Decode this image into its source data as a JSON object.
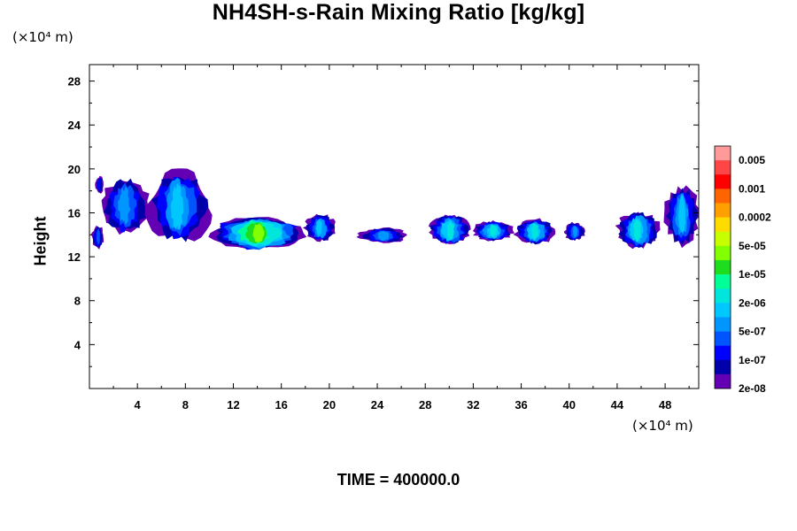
{
  "title": "NH4SH-s-Rain Mixing Ratio [kg/kg]",
  "y_unit": "(×10⁴ m)",
  "x_unit": "(×10⁴ m)",
  "time_label": "TIME = 400000.0",
  "chart_data": {
    "type": "heatmap",
    "title": "NH4SH-s-Rain Mixing Ratio [kg/kg]",
    "xlabel": "",
    "ylabel": "Height",
    "x_unit": "(×10⁴ m)",
    "y_unit": "(×10⁴ m)",
    "xlim": [
      0,
      50.8
    ],
    "ylim": [
      0,
      29.5
    ],
    "x_ticks": [
      4,
      8,
      12,
      16,
      20,
      24,
      28,
      32,
      36,
      40,
      44,
      48
    ],
    "y_ticks": [
      4,
      8,
      12,
      16,
      20,
      24,
      28
    ],
    "colorbar": {
      "labels": [
        "0.005",
        "0.001",
        "0.0002",
        "5e-05",
        "1e-05",
        "2e-06",
        "5e-07",
        "1e-07",
        "2e-08"
      ],
      "colors": [
        "#ff9a9a",
        "#ff4646",
        "#ff0000",
        "#ff6400",
        "#ffa000",
        "#ffdc00",
        "#c8ff00",
        "#82ff00",
        "#1edc1e",
        "#00ff96",
        "#00e6dc",
        "#00c8ff",
        "#0096ff",
        "#0055ff",
        "#0000ff",
        "#0000aa",
        "#6400b4"
      ]
    },
    "regions": [
      {
        "x": [
          0.2,
          1.2
        ],
        "y": [
          12.8,
          14.8
        ],
        "level": 3
      },
      {
        "x": [
          0.5,
          1.2
        ],
        "y": [
          17.8,
          19.3
        ],
        "level": 2
      },
      {
        "x": [
          1.0,
          5.0
        ],
        "y": [
          14.2,
          19.0
        ],
        "level": 4
      },
      {
        "x": [
          5.0,
          10.0
        ],
        "y": [
          13.5,
          19.6
        ],
        "level": 5
      },
      {
        "x": [
          10.0,
          18.0
        ],
        "y": [
          12.7,
          15.6
        ],
        "level": 9
      },
      {
        "x": [
          18.0,
          20.5
        ],
        "y": [
          13.5,
          15.8
        ],
        "level": 5
      },
      {
        "x": [
          22.5,
          26.5
        ],
        "y": [
          13.3,
          14.6
        ],
        "level": 4
      },
      {
        "x": [
          28.3,
          31.8
        ],
        "y": [
          13.2,
          15.8
        ],
        "level": 6
      },
      {
        "x": [
          32.0,
          35.3
        ],
        "y": [
          13.5,
          15.2
        ],
        "level": 6
      },
      {
        "x": [
          35.5,
          38.8
        ],
        "y": [
          13.2,
          15.4
        ],
        "level": 6
      },
      {
        "x": [
          39.6,
          41.3
        ],
        "y": [
          13.5,
          15.1
        ],
        "level": 4
      },
      {
        "x": [
          44.0,
          47.5
        ],
        "y": [
          12.9,
          16.0
        ],
        "level": 6
      },
      {
        "x": [
          48.0,
          50.8
        ],
        "y": [
          13.2,
          18.3
        ],
        "level": 5
      }
    ]
  }
}
